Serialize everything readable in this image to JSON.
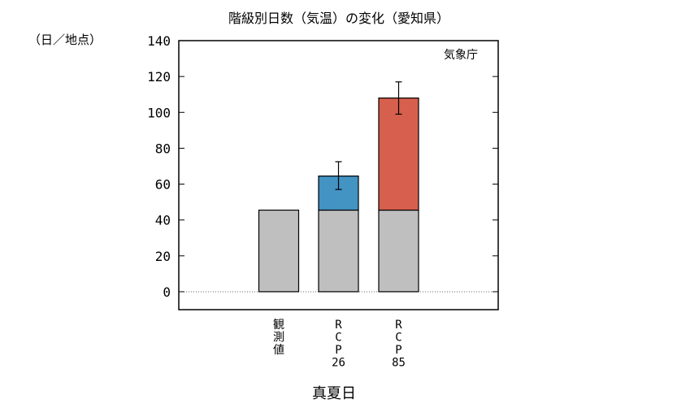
{
  "chart_data": {
    "type": "bar",
    "title": "階級別日数（気温）の変化（愛知県）",
    "ylabel": "（日／地点）",
    "xlabel": "真夏日",
    "source": "気象庁",
    "ylim": [
      -10,
      140
    ],
    "yticks": [
      0,
      20,
      40,
      60,
      80,
      100,
      120,
      140
    ],
    "categories": [
      "観測値",
      "RCP26",
      "RCP85"
    ],
    "category_labels": [
      [
        "観",
        "測",
        "値"
      ],
      [
        "R",
        "C",
        "P",
        "26"
      ],
      [
        "R",
        "C",
        "P",
        "85"
      ]
    ],
    "series": [
      {
        "values": [
          45.5,
          45.5,
          45.5
        ]
      },
      {
        "values": [
          0,
          19,
          62.5
        ]
      }
    ],
    "totals": [
      45.5,
      64.5,
      108
    ],
    "error_bars": [
      null,
      [
        57,
        72.5
      ],
      [
        99,
        117
      ]
    ],
    "colors": {
      "base": "#bfbfbf",
      "RCP26": "#4393c3",
      "RCP85": "#d6604d",
      "outline": "#000000"
    },
    "grid": false,
    "zero_line": "dotted"
  }
}
